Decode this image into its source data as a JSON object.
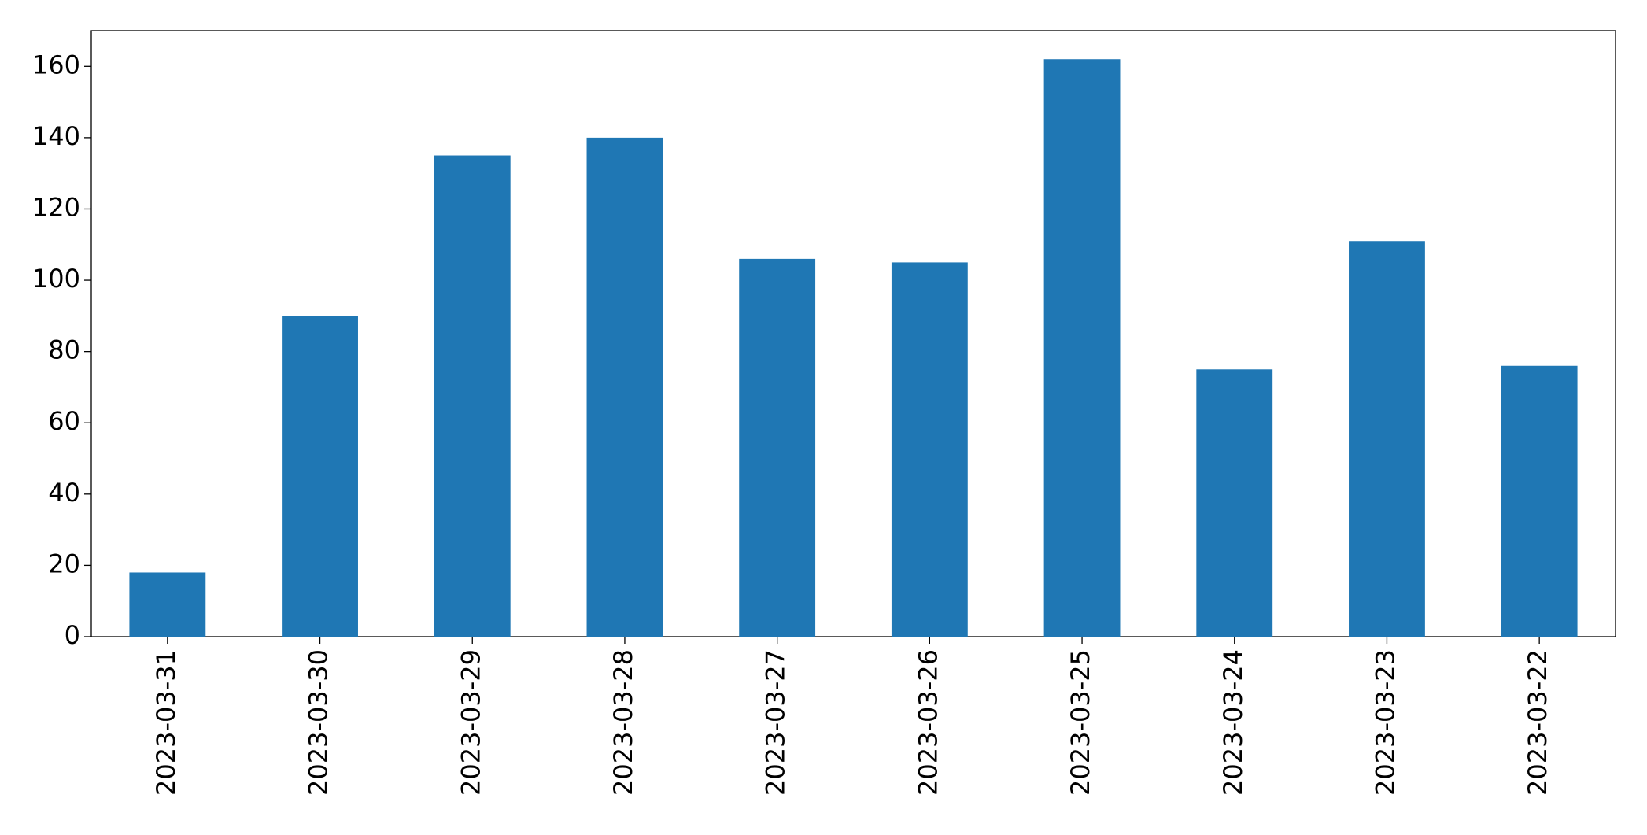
{
  "chart_data": {
    "type": "bar",
    "categories": [
      "2023-03-31",
      "2023-03-30",
      "2023-03-29",
      "2023-03-28",
      "2023-03-27",
      "2023-03-26",
      "2023-03-25",
      "2023-03-24",
      "2023-03-23",
      "2023-03-22"
    ],
    "values": [
      18,
      90,
      135,
      140,
      106,
      105,
      162,
      75,
      111,
      76
    ],
    "color": "#1f77b4",
    "ylim": [
      0,
      170
    ],
    "yticks": [
      0,
      20,
      40,
      60,
      80,
      100,
      120,
      140,
      160
    ],
    "grid": false
  }
}
